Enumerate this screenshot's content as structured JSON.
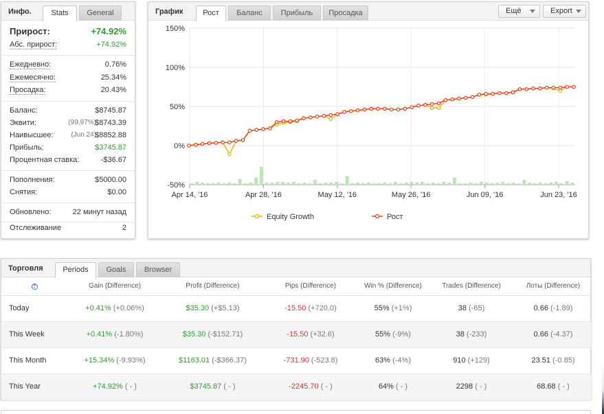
{
  "info": {
    "title": "Инфо.",
    "tabs": [
      "Stats",
      "General"
    ],
    "growth_label": "Прирост:",
    "growth_value": "+74.92%",
    "abs_growth_label": "Абс. прирост:",
    "abs_growth_value": "+74.92%",
    "daily_label": "Ежедневно:",
    "daily_value": "0.76%",
    "monthly_label": "Ежемесячно:",
    "monthly_value": "25.34%",
    "drawdown_label": "Просадка:",
    "drawdown_value": "20.43%",
    "balance_label": "Баланс:",
    "balance_value": "$8745.87",
    "equity_label": "Эквити:",
    "equity_pct": "(99.97%)",
    "equity_value": "$8743.39",
    "highest_label": "Наивысшее:",
    "highest_date": "(Jun 24)",
    "highest_value": "$8852.88",
    "profit_label": "Прибыль:",
    "profit_value": "$3745.87",
    "interest_label": "Процентная ставка:",
    "interest_value": "-$36.67",
    "deposits_label": "Пополнения:",
    "deposits_value": "$5000.00",
    "withdrawals_label": "Снятия:",
    "withdrawals_value": "$0.00",
    "updated_label": "Обновлено:",
    "updated_value": "22 минут назад",
    "tracking_label": "Отслеживание",
    "tracking_value": "2"
  },
  "chart_panel": {
    "title": "График",
    "tabs": [
      "Рост",
      "Баланс",
      "Прибыль",
      "Просадка"
    ],
    "more_button": "Ещё",
    "export_button": "Export"
  },
  "chart_data": {
    "type": "line",
    "yticks": [
      "150%",
      "100%",
      "50%",
      "0%",
      "-50%"
    ],
    "ylim": [
      -50,
      150
    ],
    "xticks": [
      "Apr 14, '16",
      "Apr 28, '16",
      "May 12, '16",
      "May 26, '16",
      "Jun 09, '16",
      "Jun 23, '16"
    ],
    "series": [
      {
        "name": "Equity Growth",
        "color": "#f0b400",
        "values": [
          0,
          1,
          2,
          3,
          3.5,
          4,
          -11,
          6,
          7,
          19,
          20,
          21,
          22,
          27,
          29,
          30,
          31,
          35,
          36,
          37,
          38,
          34,
          40,
          43,
          44,
          45,
          46,
          47,
          47,
          47,
          46,
          46,
          47,
          49,
          51,
          52,
          48,
          48,
          58,
          59,
          60,
          61,
          62,
          65,
          65,
          66,
          67,
          67,
          68,
          72,
          72,
          73,
          73,
          74,
          73,
          70,
          75,
          75
        ]
      },
      {
        "name": "Рост",
        "color": "#e8401c",
        "values": [
          0,
          1,
          2,
          3,
          3.5,
          4,
          4,
          6,
          7,
          19,
          20,
          21,
          22,
          30,
          31,
          31,
          32,
          35,
          36,
          37,
          38,
          39,
          40,
          43,
          44,
          45,
          46,
          47,
          47,
          47,
          46,
          46,
          47,
          49,
          51,
          52,
          53,
          54,
          58,
          59,
          60,
          61,
          62,
          65,
          66,
          66,
          67,
          67,
          68,
          72,
          72,
          73,
          73,
          74,
          74,
          74,
          75,
          75
        ]
      }
    ],
    "bars": {
      "color": "#b9e6b3",
      "values": [
        2,
        4,
        3,
        2,
        2,
        3,
        2,
        3,
        2,
        8,
        2,
        3,
        10,
        25,
        3,
        3,
        4,
        4,
        3,
        4,
        2,
        3,
        2,
        7,
        2,
        3,
        3,
        4,
        2,
        12,
        2,
        3,
        2,
        3,
        2,
        2,
        3,
        2,
        4,
        2,
        3,
        4,
        3,
        4,
        2,
        3,
        2,
        4,
        3,
        10,
        2,
        2,
        3,
        2,
        4,
        3,
        2,
        3,
        4,
        2,
        3,
        2,
        7,
        3,
        2,
        3,
        2,
        3,
        4,
        2,
        5,
        3
      ]
    }
  },
  "trading": {
    "title": "Торговля",
    "tabs": [
      "Periods",
      "Goals",
      "Browser"
    ],
    "help_icon": "?",
    "columns": [
      "Gain (Difference)",
      "Profit (Difference)",
      "Pips (Difference)",
      "Win % (Difference)",
      "Trades (Difference)",
      "Лоты (Difference)"
    ],
    "rows": [
      {
        "period": "Today",
        "gain": "+0.41%",
        "gain_diff": "(+0.06%)",
        "profit": "$35.30",
        "profit_diff": "(+$5.13)",
        "pips": "-15.50",
        "pips_diff": "(+720.0)",
        "win": "55%",
        "win_diff": "(+1%)",
        "trades": "38",
        "trades_diff": "(-65)",
        "lots": "0.66",
        "lots_diff": "(-1.89)"
      },
      {
        "period": "This Week",
        "gain": "+0.41%",
        "gain_diff": "(-1.80%)",
        "profit": "$35.30",
        "profit_diff": "(-$152.71)",
        "pips": "-15.50",
        "pips_diff": "(+32.6)",
        "win": "55%",
        "win_diff": "(-9%)",
        "trades": "38",
        "trades_diff": "(-233)",
        "lots": "0.66",
        "lots_diff": "(-4.37)"
      },
      {
        "period": "This Month",
        "gain": "+15.34%",
        "gain_diff": "(-9.93%)",
        "profit": "$1163.01",
        "profit_diff": "(-$366.37)",
        "pips": "-731.90",
        "pips_diff": "(-523.8)",
        "win": "63%",
        "win_diff": "(-4%)",
        "trades": "910",
        "trades_diff": "(+129)",
        "lots": "23.51",
        "lots_diff": "(-0.85)"
      },
      {
        "period": "This Year",
        "gain": "+74.92%",
        "gain_diff": "( - )",
        "profit": "$3745.87",
        "profit_diff": "( - )",
        "pips": "-2245.70",
        "pips_diff": "( - )",
        "win": "64%",
        "win_diff": "( - )",
        "trades": "2298",
        "trades_diff": "( - )",
        "lots": "68.68",
        "lots_diff": "( - )"
      }
    ]
  }
}
